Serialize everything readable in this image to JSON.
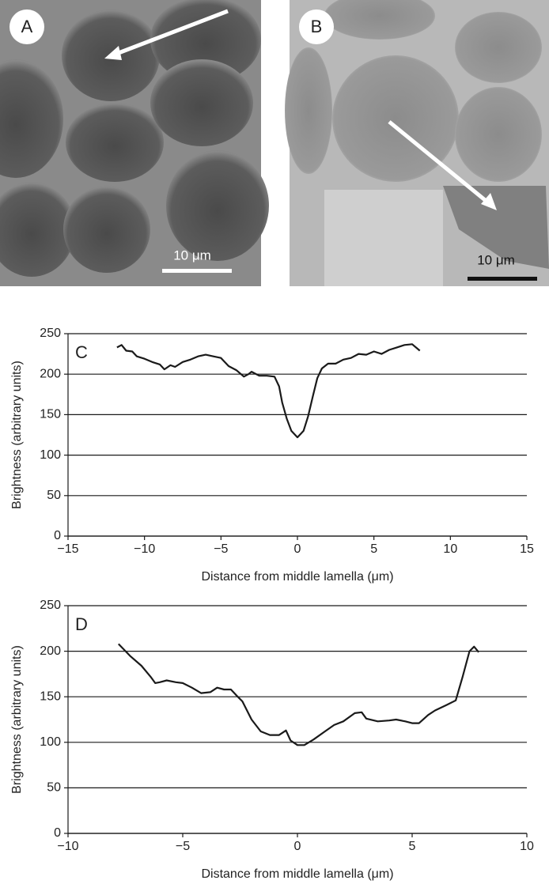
{
  "panels": [
    {
      "label": "A",
      "scale_bar": "10 μm"
    },
    {
      "label": "B",
      "scale_bar": "10 μm"
    }
  ],
  "chart_data": [
    {
      "type": "line",
      "panel_label": "C",
      "xlabel": "Distance from middle lamella (μm)",
      "ylabel": "Brightness (arbitrary units)",
      "xlim": [
        -15,
        15
      ],
      "ylim": [
        0,
        250
      ],
      "xticks": [
        {
          "value": -15,
          "label": "−15"
        },
        {
          "value": -10,
          "label": "−10"
        },
        {
          "value": -5,
          "label": "−5"
        },
        0,
        5,
        10,
        15
      ],
      "yticks": [
        0,
        50,
        100,
        150,
        200,
        250
      ],
      "grid": true,
      "color": "#1a1a1a",
      "x": [
        -11.8,
        -11.5,
        -11.2,
        -10.8,
        -10.5,
        -10,
        -9.5,
        -9,
        -8.7,
        -8.3,
        -8,
        -7.5,
        -7,
        -6.5,
        -6,
        -5.5,
        -5,
        -4.7,
        -4.5,
        -4,
        -3.5,
        -3.2,
        -3,
        -2.5,
        -2,
        -1.5,
        -1.2,
        -1,
        -0.7,
        -0.4,
        0,
        0.4,
        0.7,
        1,
        1.3,
        1.6,
        2,
        2.5,
        3,
        3.5,
        4,
        4.5,
        5,
        5.5,
        6,
        6.5,
        7,
        7.5,
        8
      ],
      "values": [
        233,
        236,
        229,
        228,
        222,
        219,
        215,
        212,
        206,
        211,
        209,
        215,
        218,
        222,
        224,
        222,
        220,
        214,
        210,
        205,
        197,
        200,
        203,
        198,
        198,
        197,
        185,
        165,
        145,
        130,
        122,
        130,
        148,
        172,
        195,
        207,
        213,
        213,
        218,
        220,
        225,
        224,
        228,
        225,
        230,
        233,
        236,
        237,
        229
      ]
    },
    {
      "type": "line",
      "panel_label": "D",
      "xlabel": "Distance from middle lamella (μm)",
      "ylabel": "Brightness (arbitrary units)",
      "xlim": [
        -10,
        10
      ],
      "ylim": [
        0,
        250
      ],
      "xticks": [
        {
          "value": -10,
          "label": "−10"
        },
        {
          "value": -5,
          "label": "−5"
        },
        0,
        5,
        10
      ],
      "yticks": [
        0,
        50,
        100,
        150,
        200,
        250
      ],
      "grid": true,
      "color": "#1a1a1a",
      "x": [
        -7.8,
        -7.3,
        -6.8,
        -6.4,
        -6.2,
        -6,
        -5.7,
        -5.3,
        -5,
        -4.6,
        -4.2,
        -3.8,
        -3.5,
        -3.2,
        -2.9,
        -2.6,
        -2.4,
        -2.2,
        -2,
        -1.6,
        -1.2,
        -0.8,
        -0.5,
        -0.3,
        0,
        0.3,
        0.7,
        1.2,
        1.6,
        2,
        2.5,
        2.8,
        3,
        3.5,
        4,
        4.3,
        4.7,
        5,
        5.3,
        5.7,
        6,
        6.5,
        6.9,
        7.2,
        7.5,
        7.7,
        7.9
      ],
      "values": [
        208,
        195,
        184,
        172,
        165,
        166,
        168,
        166,
        165,
        160,
        154,
        155,
        160,
        158,
        158,
        150,
        145,
        135,
        125,
        112,
        108,
        108,
        113,
        102,
        97,
        97,
        103,
        112,
        119,
        123,
        132,
        133,
        126,
        123,
        124,
        125,
        123,
        121,
        121,
        130,
        135,
        141,
        146,
        172,
        200,
        205,
        199
      ]
    }
  ]
}
